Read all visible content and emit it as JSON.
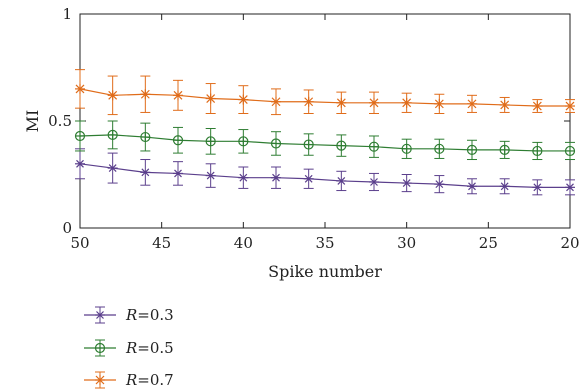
{
  "chart_data": {
    "type": "line",
    "xlabel": "Spike number",
    "ylabel": "MI",
    "x_reversed": true,
    "xlim": [
      50,
      20
    ],
    "ylim": [
      0,
      1
    ],
    "x_ticks": [
      50,
      45,
      40,
      35,
      30,
      25,
      20
    ],
    "y_ticks": [
      0,
      0.5,
      1
    ],
    "x_tick_labels": [
      "50",
      "45",
      "40",
      "35",
      "30",
      "25",
      "20"
    ],
    "y_tick_labels": [
      "0",
      "0.5",
      "1"
    ],
    "legend_position": "below",
    "x": [
      50,
      48,
      46,
      44,
      42,
      40,
      38,
      36,
      34,
      32,
      30,
      28,
      26,
      24,
      22,
      20
    ],
    "series": [
      {
        "name_var": "R",
        "name_value": "=0.3",
        "marker": "asterisk",
        "color": "#5b3f8c",
        "values": [
          0.3,
          0.28,
          0.26,
          0.255,
          0.245,
          0.235,
          0.235,
          0.23,
          0.22,
          0.215,
          0.21,
          0.205,
          0.195,
          0.195,
          0.19,
          0.19
        ],
        "errors": [
          0.07,
          0.07,
          0.06,
          0.055,
          0.055,
          0.05,
          0.05,
          0.045,
          0.045,
          0.04,
          0.04,
          0.04,
          0.035,
          0.035,
          0.035,
          0.035
        ]
      },
      {
        "name_var": "R",
        "name_value": "=0.5",
        "marker": "circle",
        "color": "#2e7d32",
        "values": [
          0.43,
          0.435,
          0.425,
          0.41,
          0.405,
          0.405,
          0.395,
          0.39,
          0.385,
          0.38,
          0.37,
          0.37,
          0.365,
          0.365,
          0.36,
          0.36
        ],
        "errors": [
          0.07,
          0.065,
          0.065,
          0.06,
          0.06,
          0.055,
          0.055,
          0.05,
          0.05,
          0.05,
          0.045,
          0.045,
          0.045,
          0.04,
          0.04,
          0.04
        ]
      },
      {
        "name_var": "R",
        "name_value": "=0.7",
        "marker": "star",
        "color": "#e06c1a",
        "values": [
          0.65,
          0.62,
          0.625,
          0.62,
          0.605,
          0.6,
          0.59,
          0.59,
          0.585,
          0.585,
          0.585,
          0.58,
          0.58,
          0.575,
          0.57,
          0.57
        ],
        "errors": [
          0.09,
          0.09,
          0.085,
          0.07,
          0.07,
          0.065,
          0.06,
          0.055,
          0.05,
          0.05,
          0.045,
          0.045,
          0.04,
          0.035,
          0.03,
          0.03
        ]
      }
    ]
  }
}
